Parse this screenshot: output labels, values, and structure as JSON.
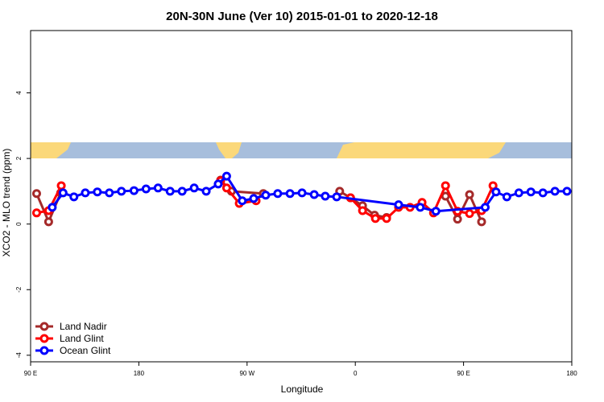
{
  "chart_data": {
    "type": "line",
    "title": "20N-30N June (Ver 10)   2015-01-01 to 2020-12-18",
    "xlabel": "Longitude",
    "ylabel": "XCO2 - MLO trend (ppm)",
    "xlim": [
      90,
      540
    ],
    "ylim": [
      -4.2,
      5.9
    ],
    "xticks": [
      {
        "value": 90,
        "label": "90 E"
      },
      180,
      {
        "value": 270,
        "label": "90 W"
      },
      {
        "value": 360,
        "label": "0"
      },
      {
        "value": 450,
        "label": "90 E"
      },
      {
        "value": 540,
        "label": "180"
      }
    ],
    "yticks": [
      -4,
      -2,
      0,
      2,
      4
    ],
    "legend": "bottom-left",
    "series": [
      {
        "name": "Land Nadir",
        "color": "#a52a2a",
        "x": [
          95,
          105,
          115,
          180,
          248,
          257,
          283.5,
          320,
          347,
          356,
          366,
          376,
          386,
          410,
          435,
          445,
          455,
          465
        ],
        "values": [
          0.93,
          0.07,
          0.95,
          null,
          1.34,
          1.0,
          0.93,
          null,
          1.0,
          0.8,
          0.56,
          0.27,
          0.2,
          null,
          0.85,
          0.15,
          0.9,
          0.07
        ]
      },
      {
        "name": "Land Glint",
        "color": "#ff0000",
        "x": [
          95,
          105,
          115.5,
          180,
          248,
          253,
          263.5,
          277.5,
          320,
          356,
          366,
          376.7,
          386,
          396,
          405.5,
          415.5,
          425,
          435,
          445,
          455,
          465,
          474.5
        ],
        "values": [
          0.34,
          0.41,
          1.17,
          null,
          1.32,
          1.1,
          0.63,
          0.71,
          null,
          0.8,
          0.41,
          0.17,
          0.17,
          0.51,
          0.51,
          0.66,
          0.34,
          1.17,
          0.39,
          0.32,
          0.41,
          1.17
        ]
      },
      {
        "name": "Ocean Glint",
        "color": "#0000ff",
        "x": [
          108,
          117,
          126,
          135.5,
          145.5,
          155.5,
          165.5,
          176,
          186,
          196,
          206,
          216,
          226,
          236,
          246,
          253,
          266,
          275.5,
          285.5,
          295.5,
          305.7,
          315.7,
          325.8,
          335,
          344.5,
          396,
          414,
          427,
          468,
          477,
          486,
          496,
          506,
          516,
          526,
          536
        ],
        "values": [
          0.51,
          0.95,
          0.83,
          0.95,
          0.98,
          0.95,
          1.0,
          1.02,
          1.07,
          1.1,
          1.0,
          1.0,
          1.1,
          1.0,
          1.22,
          1.46,
          0.71,
          0.78,
          0.88,
          0.93,
          0.93,
          0.95,
          0.9,
          0.85,
          0.83,
          0.59,
          0.51,
          0.39,
          0.51,
          0.98,
          0.83,
          0.95,
          0.98,
          0.95,
          1.0,
          1.0
        ]
      }
    ]
  }
}
